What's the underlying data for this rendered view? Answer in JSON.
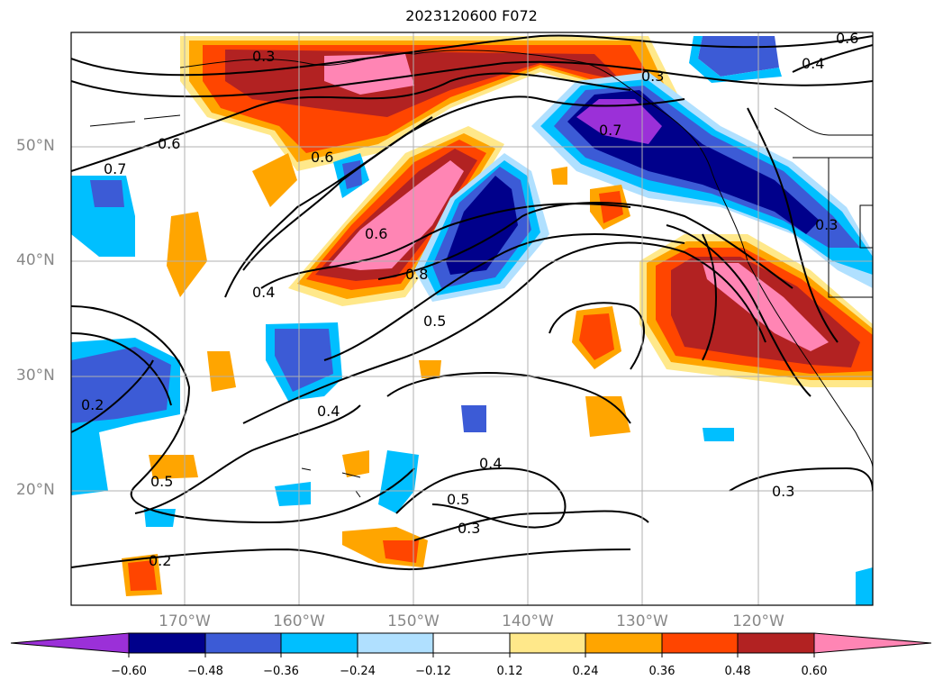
{
  "title": "2023120600 F072",
  "map": {
    "lat_labels": [
      "50°N",
      "40°N",
      "30°N",
      "20°N"
    ],
    "lon_labels": [
      "170°W",
      "160°W",
      "150°W",
      "140°W",
      "130°W",
      "120°W"
    ],
    "contour_labels": [
      "0.3",
      "0.3",
      "0.4",
      "0.6",
      "0.7",
      "0.6",
      "0.6",
      "0.7",
      "0.3",
      "0.6",
      "0.8",
      "0.4",
      "0.5",
      "0.4",
      "0.4",
      "0.5",
      "0.5",
      "0.3",
      "0.2",
      "0.3",
      "0.2"
    ]
  },
  "colorbar": {
    "ticks": [
      "−0.60",
      "−0.48",
      "−0.36",
      "−0.24",
      "−0.12",
      "0.12",
      "0.24",
      "0.36",
      "0.48",
      "0.60"
    ],
    "colors": [
      "#9b30d8",
      "#00008b",
      "#3c5bd6",
      "#00bfff",
      "#b0e0ff",
      "#ffffff",
      "#ffe88a",
      "#ffa500",
      "#ff4500",
      "#b22222",
      "#ff85b4"
    ]
  }
}
